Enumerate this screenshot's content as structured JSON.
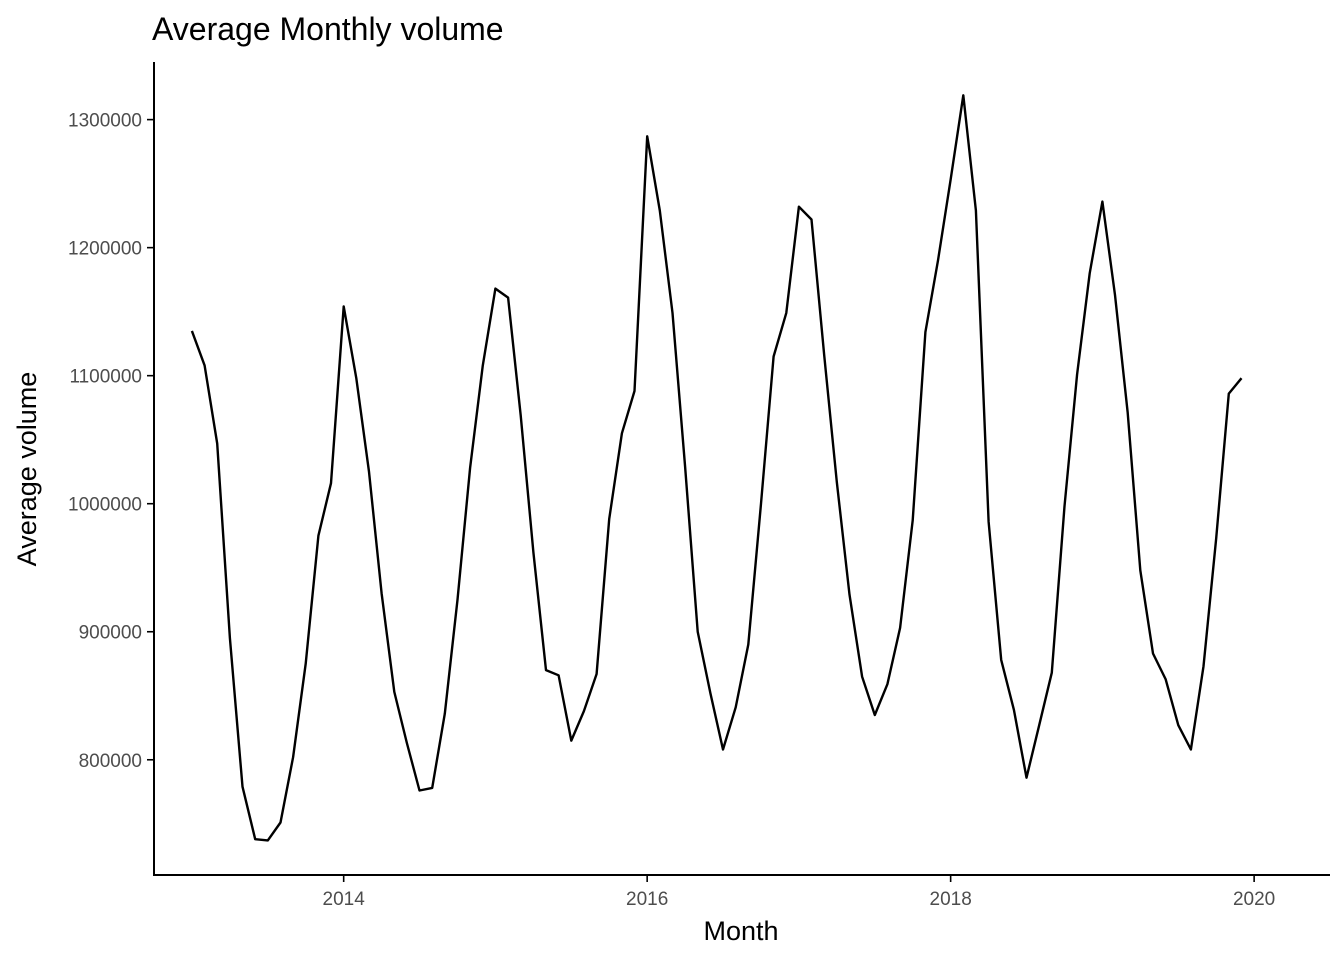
{
  "chart_data": {
    "type": "line",
    "title": "Average Monthly volume",
    "xlabel": "Month",
    "ylabel": "Average volume",
    "xlim": [
      2012.75,
      2020.5
    ],
    "ylim": [
      710000,
      1345000
    ],
    "x_ticks": [
      2014,
      2016,
      2018,
      2020
    ],
    "x_tick_labels": [
      "2014",
      "2016",
      "2018",
      "2020"
    ],
    "y_ticks": [
      800000,
      900000,
      1000000,
      1100000,
      1200000,
      1300000
    ],
    "y_tick_labels": [
      "800000",
      "900000",
      "1000000",
      "1100000",
      "1200000",
      "1300000"
    ],
    "grid": false,
    "legend": "none",
    "x_start": "2013-01",
    "x_step": "1 month",
    "values": [
      1135000,
      1108000,
      1047000,
      895000,
      779000,
      738000,
      737000,
      751000,
      802000,
      875000,
      975000,
      1016000,
      1154000,
      1098000,
      1025000,
      930000,
      853000,
      813000,
      776000,
      778000,
      836000,
      925000,
      1028000,
      1108000,
      1168000,
      1161000,
      1069000,
      962000,
      870000,
      866000,
      815000,
      838000,
      867000,
      988000,
      1055000,
      1088000,
      1287000,
      1229000,
      1149000,
      1029000,
      900000,
      852000,
      808000,
      841000,
      890000,
      1000000,
      1115000,
      1149000,
      1232000,
      1222000,
      1116000,
      1017000,
      929000,
      865000,
      835000,
      859000,
      903000,
      987000,
      1134000,
      1190000,
      1253000,
      1319000,
      1229000,
      986000,
      878000,
      839000,
      786000,
      827000,
      868000,
      998000,
      1101000,
      1180000,
      1236000,
      1163000,
      1071000,
      948000,
      883000,
      863000,
      827000,
      808000,
      873000,
      973000,
      1086000,
      1098000
    ]
  }
}
